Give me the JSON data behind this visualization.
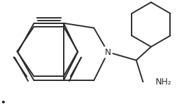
{
  "bg_color": "#ffffff",
  "line_color": "#2a2a2a",
  "line_width": 1.4,
  "N_label": "N",
  "NH2_label": "NH₂",
  "font_size_N": 8,
  "font_size_NH2": 8,
  "figsize": [
    2.67,
    1.53
  ],
  "dpi": 100
}
